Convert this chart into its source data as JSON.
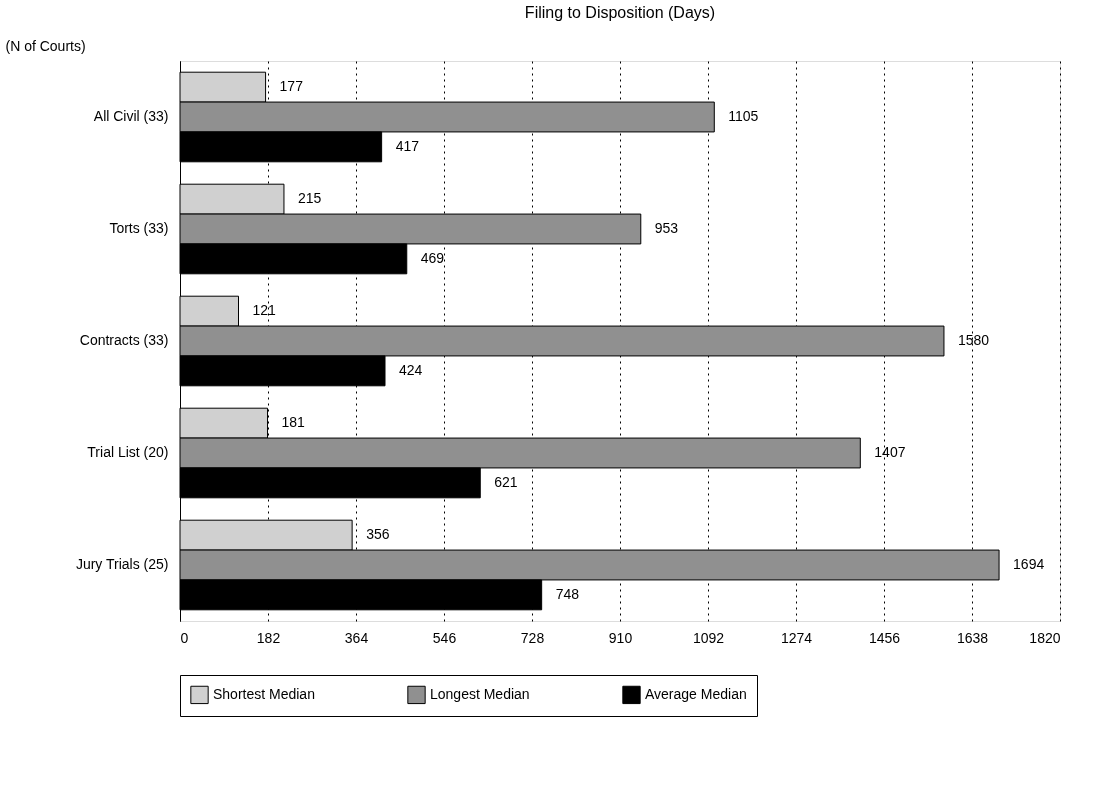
{
  "chart_data": {
    "type": "bar",
    "orientation": "horizontal",
    "title": "Filing to Disposition (Days)",
    "ylabel": "(N of Courts)",
    "categories": [
      "All Civil (33)",
      "Torts (33)",
      "Contracts (33)",
      "Trial List (20)",
      "Jury Trials (25)"
    ],
    "series": [
      {
        "name": "Shortest Median",
        "color": "#d0d0d0",
        "values": [
          177,
          215,
          121,
          181,
          356
        ]
      },
      {
        "name": "Longest Median",
        "color": "#909090",
        "values": [
          1105,
          953,
          1580,
          1407,
          1694
        ]
      },
      {
        "name": "Average Median",
        "color": "#000000",
        "values": [
          417,
          469,
          424,
          621,
          748
        ]
      }
    ],
    "xlim": [
      0,
      1820
    ],
    "xticks": [
      0,
      182,
      364,
      546,
      728,
      910,
      1092,
      1274,
      1456,
      1638,
      1820
    ],
    "grid": "x",
    "legend": "bottom",
    "data_labels": true
  }
}
